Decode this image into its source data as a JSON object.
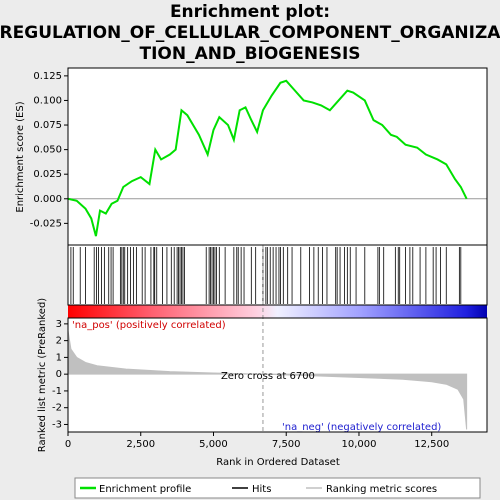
{
  "chart_data": [
    {
      "type": "line",
      "title_lines": [
        "Enrichment plot:",
        "REGULATION_OF_CELLULAR_COMPONENT_ORGANIZA",
        "TION_AND_BIOGENESIS"
      ],
      "ylabel": "Enrichment score (ES)",
      "xlim": [
        0,
        14400
      ],
      "ylim": [
        -0.047,
        0.133
      ],
      "yticks": [
        {
          "value": -0.025,
          "label": "-0.025"
        },
        {
          "value": 0,
          "label": "0.000"
        },
        {
          "value": 0.025,
          "label": "0.025"
        },
        {
          "value": 0.05,
          "label": "0.050"
        },
        {
          "value": 0.075,
          "label": "0.075"
        },
        {
          "value": 0.1,
          "label": "0.100"
        },
        {
          "value": 0.125,
          "label": "0.125"
        }
      ],
      "series": [
        {
          "name": "Enrichment profile",
          "color": "#00e000",
          "x": [
            0,
            300,
            600,
            800,
            960,
            1100,
            1300,
            1500,
            1700,
            1900,
            2200,
            2500,
            2800,
            3000,
            3200,
            3500,
            3700,
            3900,
            4100,
            4500,
            4800,
            5000,
            5200,
            5500,
            5700,
            5900,
            6100,
            6300,
            6500,
            6700,
            7000,
            7300,
            7500,
            7800,
            8100,
            8400,
            8700,
            9000,
            9300,
            9600,
            9800,
            10200,
            10500,
            10800,
            11100,
            11300,
            11600,
            12000,
            12300,
            12700,
            13000,
            13300,
            13500,
            13700
          ],
          "values": [
            0,
            -0.002,
            -0.01,
            -0.02,
            -0.038,
            -0.012,
            -0.015,
            -0.005,
            -0.002,
            0.012,
            0.018,
            0.022,
            0.015,
            0.05,
            0.04,
            0.045,
            0.05,
            0.09,
            0.085,
            0.065,
            0.045,
            0.07,
            0.083,
            0.075,
            0.06,
            0.09,
            0.093,
            0.08,
            0.068,
            0.09,
            0.105,
            0.118,
            0.12,
            0.11,
            0.1,
            0.098,
            0.095,
            0.09,
            0.1,
            0.11,
            0.108,
            0.1,
            0.08,
            0.075,
            0.065,
            0.063,
            0.055,
            0.052,
            0.045,
            0.04,
            0.035,
            0.02,
            0.012,
            0
          ]
        }
      ],
      "hits": {
        "name": "Hits",
        "color": "#000000",
        "x": [
          100,
          180,
          420,
          600,
          900,
          980,
          1050,
          1150,
          1250,
          1400,
          1480,
          1550,
          1800,
          1850,
          1900,
          1950,
          2050,
          2150,
          2250,
          2350,
          2550,
          2650,
          2850,
          2950,
          2980,
          3050,
          3250,
          3400,
          3550,
          3650,
          3750,
          3800,
          3850,
          3900,
          3950,
          4000,
          4750,
          4850,
          4900,
          4950,
          5000,
          5050,
          5100,
          5200,
          5400,
          5700,
          5800,
          5850,
          5950,
          6050,
          6300,
          6450,
          6700,
          6800,
          6850,
          6950,
          7050,
          7150,
          7250,
          7300,
          7400,
          7550,
          7700,
          8000,
          8300,
          8450,
          8600,
          8750,
          8900,
          9200,
          9250,
          9350,
          9500,
          9600,
          9700,
          9900,
          10200,
          10650,
          10700,
          10850,
          11250,
          11350,
          11400,
          11600,
          11750,
          11850,
          12100,
          12300,
          12550,
          12650,
          12800,
          13000,
          13450,
          13500
        ]
      }
    },
    {
      "type": "area",
      "ylabel": "Ranked list metric (PreRanked)",
      "xlabel": "Rank in Ordered Dataset",
      "xlim": [
        0,
        14400
      ],
      "ylim": [
        -3.45,
        3.35
      ],
      "yticks": [
        -3,
        -2,
        -1,
        0,
        1,
        2,
        3
      ],
      "xticks": [
        0,
        {
          "value": 2500,
          "label": "2,500"
        },
        {
          "value": 5000,
          "label": "5,000"
        },
        {
          "value": 7500,
          "label": "7,500"
        },
        {
          "value": 10000,
          "label": "10,000"
        },
        {
          "value": 12500,
          "label": "12,500"
        }
      ],
      "zero_cross": 6700,
      "pos_label": "'na_pos' (positively correlated)",
      "neg_label": "'na_neg' (negatively correlated)",
      "zero_label": "Zero cross at 6700",
      "series": [
        {
          "name": "Ranking metric scores",
          "color": "#c0c0c0",
          "x": [
            0,
            100,
            300,
            600,
            1000,
            2000,
            3500,
            5000,
            6700,
            8500,
            10000,
            11500,
            12500,
            13000,
            13400,
            13600,
            13700
          ],
          "values": [
            2.6,
            1.5,
            1.0,
            0.7,
            0.5,
            0.3,
            0.15,
            0.07,
            0,
            -0.1,
            -0.2,
            -0.3,
            -0.45,
            -0.6,
            -0.9,
            -1.5,
            -3.3
          ]
        }
      ]
    }
  ]
}
